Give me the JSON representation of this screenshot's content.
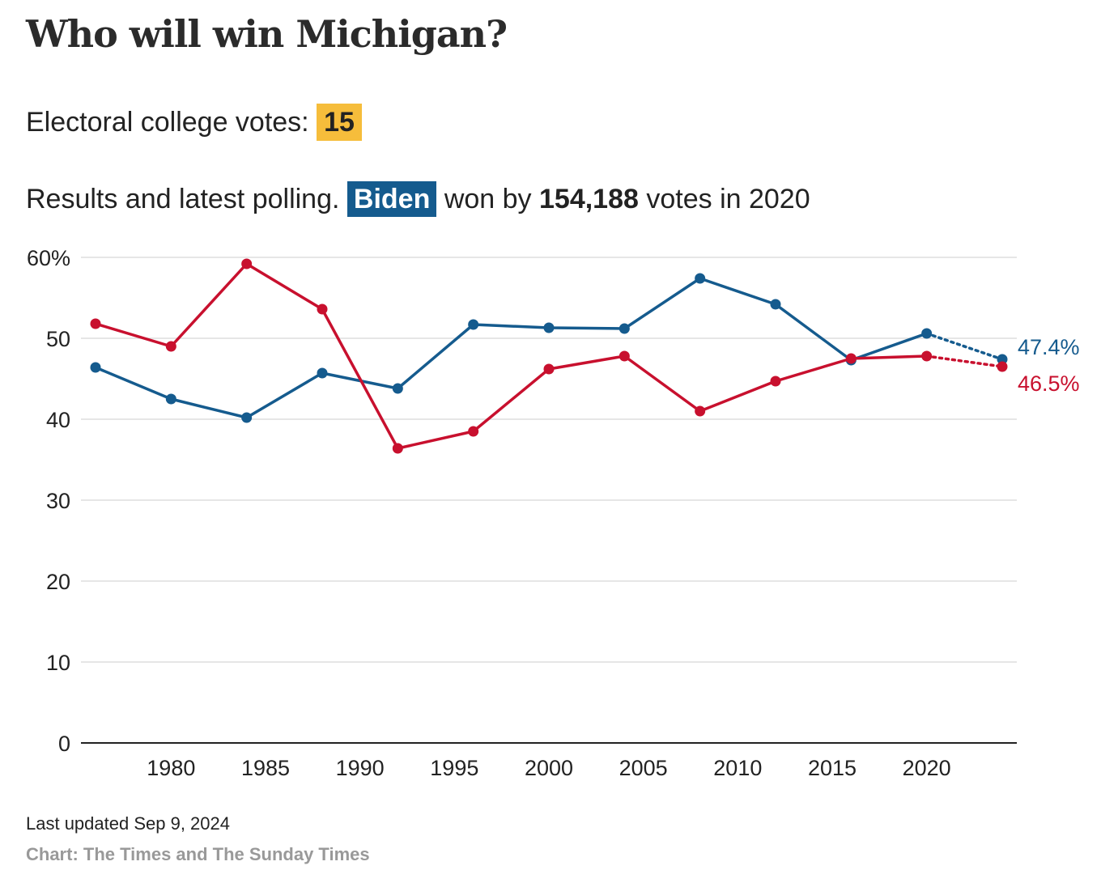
{
  "header": {
    "title": "Who will win Michigan?",
    "ecv_label": "Electoral college votes:",
    "ecv_value": "15",
    "results_prefix": "Results and latest polling.",
    "winner": "Biden",
    "won_by": "won by",
    "margin": "154,188",
    "votes_in": "votes in 2020"
  },
  "footer": {
    "updated": "Last updated Sep 9, 2024",
    "source": "Chart: The Times and The Sunday Times"
  },
  "colors": {
    "blue": "#155b8e",
    "red": "#c8102e",
    "highlight": "#f6bd3b",
    "grid": "#dddddd"
  },
  "chart_data": {
    "type": "line",
    "title": "",
    "xlabel": "",
    "ylabel": "",
    "ylim": [
      0,
      60
    ],
    "xlim": [
      1976,
      2024
    ],
    "y_ticks": [
      0,
      10,
      20,
      30,
      40,
      50,
      60
    ],
    "y_tick_labels": [
      "0",
      "10",
      "20",
      "30",
      "40",
      "50",
      "60%"
    ],
    "x_ticks": [
      1980,
      1985,
      1990,
      1995,
      2000,
      2005,
      2010,
      2015,
      2020
    ],
    "x_tick_labels": [
      "1980",
      "1985",
      "1990",
      "1995",
      "2000",
      "2005",
      "2010",
      "2015",
      "2020"
    ],
    "grid": true,
    "legend": "none",
    "series": [
      {
        "color": "#155b8e",
        "x": [
          1976,
          1980,
          1984,
          1988,
          1992,
          1996,
          2000,
          2004,
          2008,
          2012,
          2016,
          2020,
          2024
        ],
        "values": [
          46.4,
          42.5,
          40.2,
          45.7,
          43.8,
          51.7,
          51.3,
          51.2,
          57.4,
          54.2,
          47.3,
          50.6,
          47.4
        ],
        "projected_from": 2020,
        "end_label": "47.4%"
      },
      {
        "color": "#c8102e",
        "x": [
          1976,
          1980,
          1984,
          1988,
          1992,
          1996,
          2000,
          2004,
          2008,
          2012,
          2016,
          2020,
          2024
        ],
        "values": [
          51.8,
          49.0,
          59.2,
          53.6,
          36.4,
          38.5,
          46.2,
          47.8,
          41.0,
          44.7,
          47.5,
          47.8,
          46.5
        ],
        "projected_from": 2020,
        "end_label": "46.5%"
      }
    ]
  }
}
